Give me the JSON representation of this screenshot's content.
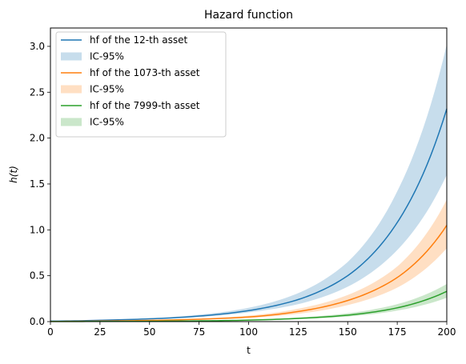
{
  "chart_data": {
    "type": "line",
    "title": "Hazard function",
    "xlabel": "t",
    "ylabel": "h(t)",
    "xlim": [
      0,
      200
    ],
    "ylim": [
      0,
      3.2
    ],
    "xticks": [
      0,
      25,
      50,
      75,
      100,
      125,
      150,
      175,
      200
    ],
    "yticks": [
      0.0,
      0.5,
      1.0,
      1.5,
      2.0,
      2.5,
      3.0
    ],
    "xtick_labels": [
      "0",
      "25",
      "50",
      "75",
      "100",
      "125",
      "150",
      "175",
      "200"
    ],
    "ytick_labels": [
      "0.0",
      "0.5",
      "1.0",
      "1.5",
      "2.0",
      "2.5",
      "3.0"
    ],
    "grid": false,
    "legend_position": "top-left",
    "x": [
      0,
      25,
      50,
      75,
      100,
      125,
      150,
      175,
      200
    ],
    "series": [
      {
        "name": "hf of the 12-th asset",
        "band_name": "IC-95%",
        "color": "#1f77b4",
        "values": [
          0.005,
          0.015,
          0.03,
          0.06,
          0.12,
          0.24,
          0.5,
          1.08,
          2.32
        ],
        "lower": [
          0.004,
          0.012,
          0.025,
          0.05,
          0.1,
          0.19,
          0.38,
          0.78,
          1.6
        ],
        "upper": [
          0.006,
          0.018,
          0.036,
          0.075,
          0.15,
          0.31,
          0.65,
          1.42,
          3.02
        ]
      },
      {
        "name": "hf of the 1073-th asset",
        "band_name": "IC-95%",
        "color": "#ff7f0e",
        "values": [
          0.002,
          0.006,
          0.013,
          0.026,
          0.05,
          0.11,
          0.23,
          0.48,
          1.05
        ],
        "lower": [
          0.0015,
          0.005,
          0.01,
          0.021,
          0.04,
          0.085,
          0.18,
          0.37,
          0.8
        ],
        "upper": [
          0.0025,
          0.008,
          0.016,
          0.032,
          0.065,
          0.14,
          0.29,
          0.6,
          1.33
        ]
      },
      {
        "name": "hf of the 7999-th asset",
        "band_name": "IC-95%",
        "color": "#2ca02c",
        "values": [
          0.001,
          0.002,
          0.004,
          0.008,
          0.016,
          0.035,
          0.07,
          0.15,
          0.33
        ],
        "lower": [
          0.0008,
          0.0016,
          0.003,
          0.006,
          0.012,
          0.027,
          0.055,
          0.12,
          0.26
        ],
        "upper": [
          0.0012,
          0.0025,
          0.005,
          0.01,
          0.021,
          0.045,
          0.09,
          0.19,
          0.41
        ]
      }
    ]
  }
}
